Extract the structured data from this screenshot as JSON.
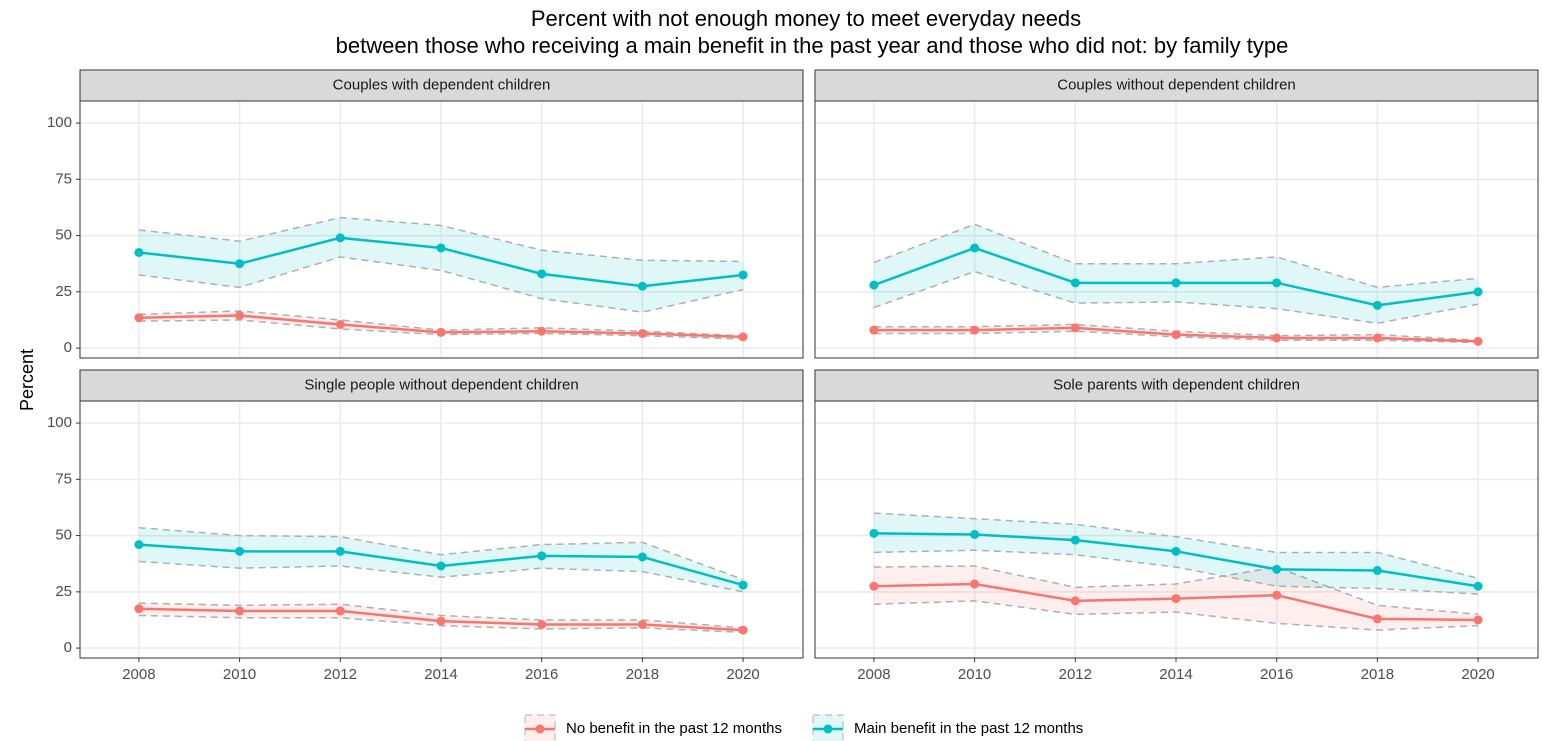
{
  "chart_data": {
    "type": "line",
    "title": [
      "Percent with not enough money to meet everyday needs",
      "between those who receiving a main benefit in the past year and those who did not: by family type"
    ],
    "ylabel": "Percent",
    "legend": "bottom",
    "grid": true,
    "x": [
      2008,
      2010,
      2012,
      2014,
      2016,
      2018,
      2020
    ],
    "xlim": [
      2006.83,
      2021.19
    ],
    "xticks": [
      2008,
      2010,
      2012,
      2014,
      2016,
      2018,
      2020
    ],
    "ylim": [
      -4.4,
      109.8
    ],
    "yticks": [
      0,
      25,
      50,
      75,
      100
    ],
    "series": [
      {
        "name": "No benefit in the past 12 months",
        "color": "#F8766D"
      },
      {
        "name": "Main benefit in the past 12 months",
        "color": "#00BFC4"
      }
    ],
    "facets": [
      {
        "title": "Couples with dependent children",
        "series": [
          {
            "values": [
              13.5,
              14.5,
              10.5,
              7,
              7.5,
              6.5,
              5
            ],
            "upper": [
              15,
              16.5,
              12.5,
              8,
              9,
              7.5,
              5.5
            ],
            "lower": [
              12,
              12.5,
              8.5,
              6,
              6.5,
              5.5,
              4
            ]
          },
          {
            "values": [
              42.5,
              37.5,
              49,
              44.5,
              33,
              27.5,
              32.5
            ],
            "upper": [
              52.5,
              47.5,
              58,
              54.5,
              43.5,
              39,
              38.5
            ],
            "lower": [
              32.5,
              27,
              40.5,
              34.5,
              22,
              16,
              26
            ]
          }
        ]
      },
      {
        "title": "Couples without dependent children",
        "series": [
          {
            "values": [
              8,
              8,
              9,
              6,
              4.5,
              4.5,
              3
            ],
            "upper": [
              9.5,
              9.5,
              10.5,
              7.5,
              5.5,
              6,
              3.5
            ],
            "lower": [
              6.5,
              6.5,
              7.5,
              5,
              3.5,
              3.5,
              2.5
            ]
          },
          {
            "values": [
              28,
              44.5,
              29,
              29,
              29,
              19,
              25
            ],
            "upper": [
              38,
              55,
              37.5,
              37.5,
              40.5,
              27,
              31
            ],
            "lower": [
              18,
              34,
              20,
              20.5,
              17.5,
              11,
              19.5
            ]
          }
        ]
      },
      {
        "title": "Single people without dependent children",
        "series": [
          {
            "values": [
              17.5,
              16.5,
              16.5,
              12,
              10.5,
              10.5,
              8
            ],
            "upper": [
              20,
              19,
              19.5,
              14.5,
              12.5,
              12.5,
              9
            ],
            "lower": [
              14.5,
              13.5,
              13.5,
              10,
              8.5,
              9,
              7
            ]
          },
          {
            "values": [
              46,
              43,
              43,
              36.5,
              41,
              40.5,
              28
            ],
            "upper": [
              53.5,
              50,
              49.5,
              41.5,
              46,
              47,
              30.5
            ],
            "lower": [
              38.5,
              35.5,
              36.5,
              31.5,
              35.5,
              34,
              25
            ]
          }
        ]
      },
      {
        "title": "Sole parents with dependent children",
        "series": [
          {
            "values": [
              27.5,
              28.5,
              21,
              22,
              23.5,
              13,
              12.5
            ],
            "upper": [
              36,
              36.5,
              27,
              28.5,
              36,
              19,
              15
            ],
            "lower": [
              19.5,
              21,
              15,
              16,
              11,
              8,
              10
            ]
          },
          {
            "values": [
              51,
              50.5,
              48,
              43,
              35,
              34.5,
              27.5
            ],
            "upper": [
              60,
              57.5,
              55,
              49.5,
              42.5,
              42.5,
              31
            ],
            "lower": [
              42.5,
              43.5,
              41.5,
              36,
              27.5,
              26.5,
              24
            ]
          }
        ]
      }
    ]
  }
}
